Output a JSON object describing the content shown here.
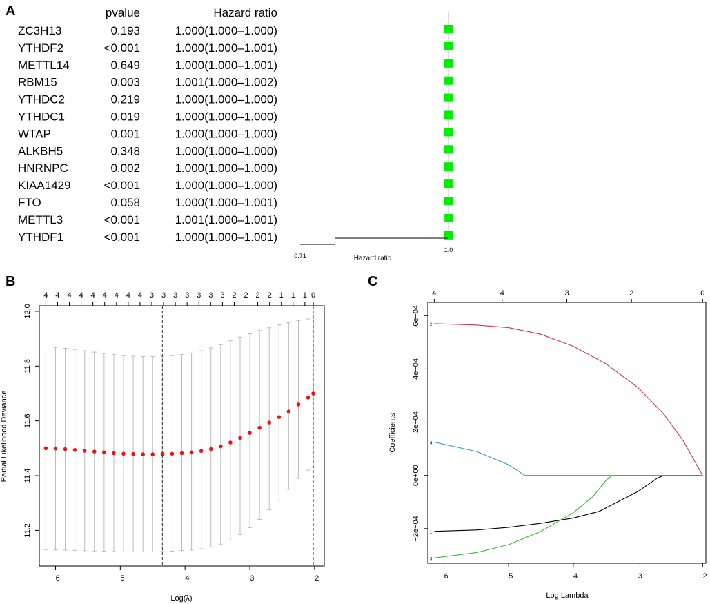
{
  "panels": {
    "a": "A",
    "b": "B",
    "c": "C"
  },
  "chart_data": [
    {
      "id": "A",
      "type": "forest",
      "headers": {
        "pvalue": "pvalue",
        "hr": "Hazard ratio"
      },
      "genes": [
        "ZC3H13",
        "YTHDF2",
        "METTL14",
        "RBM15",
        "YTHDC2",
        "YTHDC1",
        "WTAP",
        "ALKBH5",
        "HNRNPC",
        "KIAA1429",
        "FTO",
        "METTL3",
        "YTHDF1"
      ],
      "pvalues": [
        "0.193",
        "<0.001",
        "0.649",
        "0.003",
        "0.219",
        "0.019",
        "0.001",
        "0.348",
        "0.002",
        "<0.001",
        "0.058",
        "<0.001",
        "<0.001"
      ],
      "hr_text": [
        "1.000(1.000–1.000)",
        "1.000(1.000–1.001)",
        "1.000(1.000–1.001)",
        "1.001(1.000–1.002)",
        "1.000(1.000–1.000)",
        "1.000(1.000–1.000)",
        "1.000(1.000–1.000)",
        "1.000(1.000–1.000)",
        "1.000(1.000–1.000)",
        "1.000(1.000–1.000)",
        "1.000(1.000–1.001)",
        "1.001(1.000–1.001)",
        "1.000(1.000–1.001)"
      ],
      "hr": [
        1.0,
        1.0,
        1.0,
        1.001,
        1.0,
        1.0,
        1.0,
        1.0,
        1.0,
        1.0,
        1.0,
        1.001,
        1.0
      ],
      "xlabel": "Hazard ratio",
      "xticks": [
        "0.71",
        "1.0"
      ],
      "marker_color": "#00ee00"
    },
    {
      "id": "B",
      "type": "scatter-errorbar",
      "xlabel": "Log(λ)",
      "ylabel": "Partial Likelihood Deviance",
      "xlim": [
        -6.25,
        -1.85
      ],
      "ylim": [
        11.07,
        12.02
      ],
      "xticks": [
        -6,
        -5,
        -4,
        -3,
        -2
      ],
      "yticks": [
        11.2,
        11.4,
        11.6,
        11.8,
        12.0
      ],
      "xtick_labels": [
        "−6",
        "−5",
        "−4",
        "−3",
        "−2"
      ],
      "ytick_labels": [
        "11.2",
        "11.4",
        "11.6",
        "11.8",
        "12.0"
      ],
      "top_axis_labels": [
        "4",
        "4",
        "4",
        "4",
        "4",
        "4",
        "4",
        "4",
        "4",
        "3",
        "3",
        "3",
        "3",
        "3",
        "3",
        "3",
        "2",
        "2",
        "2",
        "2",
        "1",
        "1",
        "1",
        "0"
      ],
      "top_axis_x": [
        -6.15,
        -5.96,
        -5.77,
        -5.58,
        -5.39,
        -5.2,
        -5.01,
        -4.82,
        -4.63,
        -4.44,
        -4.25,
        -4.06,
        -3.87,
        -3.68,
        -3.49,
        -3.3,
        -3.11,
        -2.92,
        -2.73,
        -2.54,
        -2.35,
        -2.16,
        -1.97,
        -2.02
      ],
      "x": [
        -6.15,
        -6.0,
        -5.85,
        -5.7,
        -5.55,
        -5.4,
        -5.25,
        -5.1,
        -4.95,
        -4.8,
        -4.65,
        -4.5,
        -4.35,
        -4.2,
        -4.05,
        -3.9,
        -3.75,
        -3.6,
        -3.45,
        -3.3,
        -3.15,
        -3.0,
        -2.85,
        -2.7,
        -2.55,
        -2.4,
        -2.25,
        -2.1,
        -2.02
      ],
      "mean": [
        11.5,
        11.499,
        11.497,
        11.494,
        11.491,
        11.488,
        11.485,
        11.482,
        11.48,
        11.479,
        11.478,
        11.478,
        11.479,
        11.48,
        11.482,
        11.485,
        11.49,
        11.497,
        11.507,
        11.521,
        11.538,
        11.556,
        11.575,
        11.594,
        11.614,
        11.634,
        11.66,
        11.685,
        11.7
      ],
      "upper": [
        11.87,
        11.868,
        11.865,
        11.861,
        11.856,
        11.851,
        11.846,
        11.842,
        11.838,
        11.836,
        11.835,
        11.835,
        11.836,
        11.838,
        11.842,
        11.848,
        11.856,
        11.866,
        11.878,
        11.892,
        11.906,
        11.918,
        11.93,
        11.94,
        11.95,
        11.958,
        11.966,
        11.972,
        11.975
      ],
      "lower": [
        11.13,
        11.129,
        11.128,
        11.127,
        11.126,
        11.125,
        11.124,
        11.123,
        11.122,
        11.122,
        11.122,
        11.122,
        11.123,
        11.124,
        11.126,
        11.128,
        11.133,
        11.14,
        11.15,
        11.165,
        11.185,
        11.21,
        11.24,
        11.275,
        11.31,
        11.35,
        11.39,
        11.42,
        11.43
      ],
      "vlines": [
        -4.35,
        -2.02
      ],
      "point_color": "#ee1111",
      "bar_color": "#bbbbbb"
    },
    {
      "id": "C",
      "type": "line",
      "xlabel": "Log Lambda",
      "ylabel": "Coefficients",
      "xlim": [
        -6.25,
        -1.95
      ],
      "ylim": [
        -0.00033,
        0.00065
      ],
      "xticks": [
        -6,
        -5,
        -4,
        -3,
        -2
      ],
      "xtick_labels": [
        "−6",
        "−5",
        "−4",
        "−3",
        "−2"
      ],
      "yticks": [
        -0.0002,
        0,
        0.0002,
        0.0004,
        0.0006
      ],
      "ytick_labels": [
        "−2e−04",
        "0e+00",
        "2e−04",
        "4e−04",
        "6e−04"
      ],
      "top_axis_labels": [
        "4",
        "4",
        "3",
        "2",
        "0"
      ],
      "top_axis_x": [
        -6.15,
        -5.1,
        -4.1,
        -3.1,
        -2.0
      ],
      "series": [
        {
          "name": "2",
          "color": "#cc3355",
          "x": [
            -6.15,
            -5.5,
            -5.0,
            -4.5,
            -4.0,
            -3.5,
            -3.0,
            -2.6,
            -2.3,
            -2.0
          ],
          "y": [
            0.00057,
            0.000565,
            0.000555,
            0.00053,
            0.000485,
            0.00042,
            0.00033,
            0.00023,
            0.00013,
            0.0
          ]
        },
        {
          "name": "4",
          "color": "#3399cc",
          "x": [
            -6.15,
            -5.5,
            -5.0,
            -4.75,
            -4.0,
            -3.0,
            -2.0
          ],
          "y": [
            0.000125,
            9e-05,
            4e-05,
            0.0,
            0.0,
            0.0,
            0.0
          ]
        },
        {
          "name": "1",
          "color": "#000000",
          "x": [
            -6.15,
            -5.5,
            -5.0,
            -4.5,
            -4.0,
            -3.6,
            -3.0,
            -2.7,
            -2.6,
            -2.0
          ],
          "y": [
            -0.00021,
            -0.000205,
            -0.000195,
            -0.00018,
            -0.00016,
            -0.000135,
            -6e-05,
            -1e-05,
            0.0,
            0.0
          ]
        },
        {
          "name": "3",
          "color": "#33bb33",
          "x": [
            -6.15,
            -5.5,
            -5.0,
            -4.5,
            -4.0,
            -3.7,
            -3.5,
            -3.4,
            -2.0
          ],
          "y": [
            -0.00031,
            -0.00029,
            -0.00026,
            -0.00021,
            -0.00014,
            -8e-05,
            -2e-05,
            0.0,
            0.0
          ]
        }
      ]
    }
  ]
}
